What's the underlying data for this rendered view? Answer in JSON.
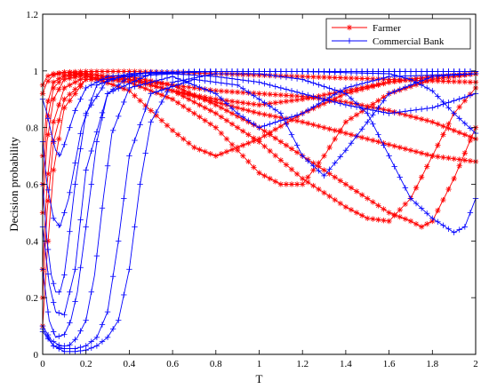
{
  "chart_data": {
    "type": "line",
    "title": "",
    "xlabel": "T",
    "ylabel": "Decision probability",
    "xlim": [
      0,
      2
    ],
    "ylim": [
      0,
      1.2
    ],
    "x_ticks": [
      "0",
      "0.2",
      "0.4",
      "0.6",
      "0.8",
      "1",
      "1.2",
      "1.4",
      "1.6",
      "1.8",
      "2"
    ],
    "y_ticks": [
      "0",
      "0.2",
      "0.4",
      "0.6",
      "0.8",
      "1",
      "1.2"
    ],
    "grid": false,
    "legend_position": "top-right",
    "series": [
      {
        "name": "Farmer",
        "color": "#ff0000",
        "marker": "asterisk",
        "curves": [
          {
            "x": [
              0,
              0.02,
              0.05,
              0.1,
              0.2,
              0.4,
              0.6,
              0.8,
              1.0,
              1.2,
              1.4,
              1.6,
              1.8,
              2.0
            ],
            "y": [
              0.92,
              0.96,
              0.985,
              0.995,
              0.998,
              0.998,
              0.995,
              0.99,
              0.985,
              0.98,
              0.975,
              0.97,
              0.965,
              0.96
            ]
          },
          {
            "x": [
              0,
              0.02,
              0.05,
              0.1,
              0.2,
              0.4,
              0.6,
              0.8,
              1.0,
              1.2,
              1.4,
              1.6,
              1.8,
              2.0
            ],
            "y": [
              0.7,
              0.88,
              0.96,
              0.985,
              0.99,
              0.97,
              0.93,
              0.9,
              0.88,
              0.9,
              0.93,
              0.96,
              0.98,
              0.99
            ]
          },
          {
            "x": [
              0,
              0.02,
              0.05,
              0.1,
              0.2,
              0.4,
              0.5,
              0.6,
              0.7,
              0.8,
              1.0,
              1.2,
              1.4,
              1.6,
              1.8,
              2.0
            ],
            "y": [
              0.5,
              0.75,
              0.9,
              0.97,
              0.985,
              0.93,
              0.86,
              0.79,
              0.73,
              0.7,
              0.76,
              0.85,
              0.92,
              0.96,
              0.98,
              0.99
            ]
          },
          {
            "x": [
              0,
              0.02,
              0.05,
              0.1,
              0.2,
              0.4,
              0.6,
              0.8,
              0.9,
              1.0,
              1.1,
              1.2,
              1.3,
              1.4,
              1.6,
              1.8,
              2.0
            ],
            "y": [
              0.3,
              0.6,
              0.82,
              0.94,
              0.98,
              0.96,
              0.9,
              0.8,
              0.72,
              0.64,
              0.6,
              0.6,
              0.7,
              0.82,
              0.92,
              0.97,
              0.99
            ]
          },
          {
            "x": [
              0,
              0.02,
              0.05,
              0.1,
              0.2,
              0.4,
              0.6,
              0.8,
              1.0,
              1.2,
              1.4,
              1.5,
              1.6,
              1.7,
              1.8,
              1.9,
              2.0
            ],
            "y": [
              0.2,
              0.5,
              0.75,
              0.9,
              0.97,
              0.97,
              0.93,
              0.85,
              0.75,
              0.62,
              0.52,
              0.48,
              0.47,
              0.55,
              0.7,
              0.85,
              0.94
            ]
          },
          {
            "x": [
              0,
              0.02,
              0.05,
              0.1,
              0.2,
              0.4,
              0.6,
              0.8,
              1.0,
              1.2,
              1.4,
              1.6,
              1.7,
              1.75,
              1.8,
              1.9,
              2.0
            ],
            "y": [
              0.1,
              0.35,
              0.65,
              0.87,
              0.97,
              0.98,
              0.95,
              0.88,
              0.8,
              0.7,
              0.6,
              0.5,
              0.47,
              0.45,
              0.47,
              0.62,
              0.8
            ]
          },
          {
            "x": [
              0,
              0.02,
              0.05,
              0.1,
              0.2,
              0.4,
              0.6,
              0.8,
              1.0,
              1.2,
              1.4,
              1.6,
              1.8,
              2.0
            ],
            "y": [
              0.95,
              0.98,
              0.99,
              0.995,
              0.99,
              0.97,
              0.95,
              0.93,
              0.92,
              0.91,
              0.89,
              0.86,
              0.82,
              0.76
            ]
          },
          {
            "x": [
              0,
              0.02,
              0.05,
              0.1,
              0.2,
              0.4,
              0.6,
              0.8,
              1.0,
              1.2,
              1.4,
              1.6,
              1.8,
              2.0
            ],
            "y": [
              0.6,
              0.82,
              0.94,
              0.98,
              0.99,
              0.97,
              0.93,
              0.89,
              0.85,
              0.82,
              0.78,
              0.74,
              0.7,
              0.68
            ]
          }
        ]
      },
      {
        "name": "Commercial Bank",
        "color": "#0000ff",
        "marker": "plus",
        "curves": [
          {
            "x": [
              0,
              0.02,
              0.04,
              0.06,
              0.08,
              0.1,
              0.15,
              0.2,
              0.3,
              0.5,
              0.8,
              1.2,
              1.6,
              2.0
            ],
            "y": [
              0.9,
              0.85,
              0.78,
              0.72,
              0.7,
              0.74,
              0.86,
              0.94,
              0.98,
              0.995,
              0.998,
              0.998,
              0.998,
              0.998
            ]
          },
          {
            "x": [
              0,
              0.02,
              0.04,
              0.06,
              0.08,
              0.1,
              0.12,
              0.15,
              0.2,
              0.3,
              0.5,
              0.8,
              1.2,
              1.6,
              2.0
            ],
            "y": [
              0.6,
              0.4,
              0.28,
              0.22,
              0.22,
              0.28,
              0.4,
              0.6,
              0.85,
              0.97,
              0.995,
              0.998,
              0.998,
              0.998,
              0.998
            ]
          },
          {
            "x": [
              0,
              0.03,
              0.06,
              0.1,
              0.13,
              0.16,
              0.2,
              0.25,
              0.3,
              0.4,
              0.6,
              0.8,
              1.0,
              1.2,
              1.4,
              1.6,
              1.8,
              2.0
            ],
            "y": [
              0.3,
              0.12,
              0.06,
              0.07,
              0.12,
              0.22,
              0.45,
              0.75,
              0.92,
              0.98,
              0.99,
              0.98,
              0.96,
              0.92,
              0.88,
              0.85,
              0.87,
              0.92
            ]
          },
          {
            "x": [
              0,
              0.04,
              0.08,
              0.12,
              0.16,
              0.2,
              0.24,
              0.28,
              0.32,
              0.4,
              0.6,
              0.8,
              0.9,
              1.0,
              1.2,
              1.4,
              1.6,
              2.0
            ],
            "y": [
              0.1,
              0.05,
              0.03,
              0.03,
              0.06,
              0.12,
              0.28,
              0.55,
              0.78,
              0.94,
              0.98,
              0.92,
              0.85,
              0.8,
              0.85,
              0.94,
              0.98,
              0.99
            ]
          },
          {
            "x": [
              0,
              0.05,
              0.1,
              0.15,
              0.2,
              0.25,
              0.3,
              0.35,
              0.4,
              0.5,
              0.7,
              0.9,
              1.1,
              1.2,
              1.3,
              1.4,
              1.6,
              1.8,
              2.0
            ],
            "y": [
              0.08,
              0.03,
              0.02,
              0.02,
              0.03,
              0.06,
              0.15,
              0.4,
              0.7,
              0.92,
              0.97,
              0.95,
              0.85,
              0.7,
              0.63,
              0.72,
              0.92,
              0.98,
              0.99
            ]
          },
          {
            "x": [
              0,
              0.05,
              0.1,
              0.15,
              0.2,
              0.25,
              0.3,
              0.35,
              0.4,
              0.45,
              0.5,
              0.6,
              0.8,
              1.0,
              1.2,
              1.4,
              1.5,
              1.6,
              1.7,
              1.8,
              1.9,
              1.95,
              2.0
            ],
            "y": [
              0.09,
              0.03,
              0.01,
              0.01,
              0.015,
              0.03,
              0.06,
              0.12,
              0.3,
              0.6,
              0.82,
              0.96,
              0.99,
              0.99,
              0.97,
              0.92,
              0.85,
              0.7,
              0.55,
              0.48,
              0.43,
              0.45,
              0.55
            ]
          },
          {
            "x": [
              0,
              0.03,
              0.06,
              0.1,
              0.15,
              0.2,
              0.3,
              0.5,
              0.8,
              1.2,
              1.6,
              1.7,
              1.8,
              1.9,
              2.0
            ],
            "y": [
              0.45,
              0.25,
              0.15,
              0.14,
              0.3,
              0.65,
              0.92,
              0.99,
              0.998,
              0.998,
              0.99,
              0.97,
              0.93,
              0.85,
              0.78
            ]
          },
          {
            "x": [
              0,
              0.02,
              0.05,
              0.08,
              0.12,
              0.18,
              0.25,
              0.4,
              0.7,
              1.0,
              1.4,
              1.8,
              2.0
            ],
            "y": [
              0.75,
              0.6,
              0.48,
              0.45,
              0.55,
              0.8,
              0.95,
              0.99,
              0.998,
              0.998,
              0.998,
              0.998,
              0.998
            ]
          }
        ]
      }
    ]
  }
}
